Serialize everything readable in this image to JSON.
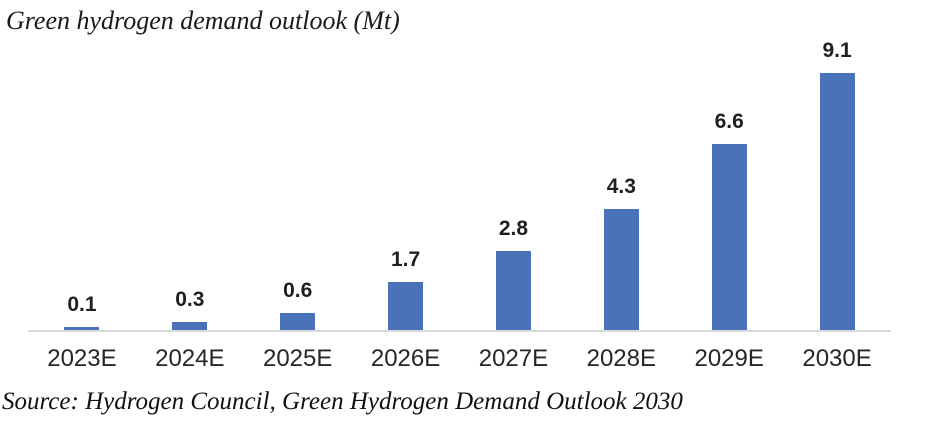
{
  "page": {
    "title": "Green hydrogen demand outlook (Mt)",
    "source_note": "Source: Hydrogen Council, Green Hydrogen Demand Outlook 2030"
  },
  "chart_data": {
    "type": "bar",
    "title": "Green hydrogen demand outlook (Mt)",
    "categories": [
      "2023E",
      "2024E",
      "2025E",
      "2026E",
      "2027E",
      "2028E",
      "2029E",
      "2030E"
    ],
    "values": [
      0.1,
      0.3,
      0.6,
      1.7,
      2.8,
      4.3,
      6.6,
      9.1
    ],
    "value_labels": [
      "0.1",
      "0.3",
      "0.6",
      "1.7",
      "2.8",
      "4.3",
      "6.6",
      "9.1"
    ],
    "xlabel": "",
    "ylabel": "",
    "ylim": [
      0,
      10
    ],
    "grid": false,
    "legend": "none",
    "data_labels": "above bars, bold",
    "bar_color": "#4a72b8",
    "axis_line_color": "#d9d9d9",
    "label_color": "#1f1f1f",
    "tick_label_color": "#262626"
  }
}
